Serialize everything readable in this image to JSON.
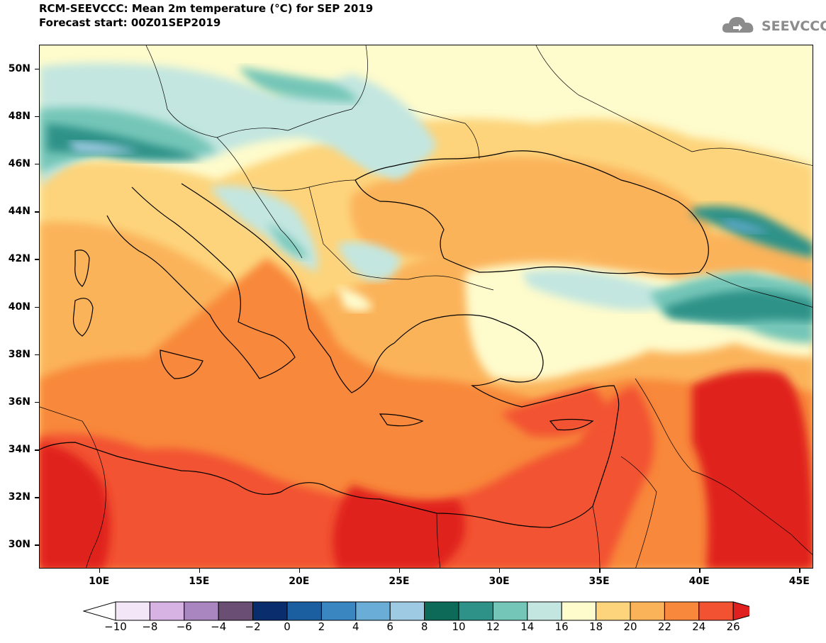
{
  "title": {
    "line1": "RCM-SEEVCCC: Mean 2m temperature (°C) for SEP 2019",
    "line2": "Forecast start: 00Z01SEP2019"
  },
  "logo": {
    "text": "SEEVCCC",
    "icon": "cloud-icon"
  },
  "map": {
    "lon_range": [
      7,
      45.7
    ],
    "lat_range": [
      29,
      51
    ],
    "lat_labels": [
      "50N",
      "48N",
      "46N",
      "44N",
      "42N",
      "40N",
      "38N",
      "36N",
      "34N",
      "32N",
      "30N"
    ],
    "lon_labels": [
      "10E",
      "15E",
      "20E",
      "25E",
      "30E",
      "35E",
      "40E",
      "45E"
    ]
  },
  "colorbar": {
    "labels": [
      "-10",
      "-8",
      "-6",
      "-4",
      "-2",
      "0",
      "2",
      "4",
      "6",
      "8",
      "10",
      "12",
      "14",
      "16",
      "18",
      "20",
      "22",
      "24",
      "26"
    ],
    "colors": [
      "#ffffff",
      "#f2e6f7",
      "#d7b3e4",
      "#a986c0",
      "#6a4e73",
      "#0a2d6e",
      "#1c5fa0",
      "#3a86c0",
      "#6aaed8",
      "#9fcae3",
      "#0d6a58",
      "#2e9288",
      "#74c6b8",
      "#c3e6e0",
      "#fefbcc",
      "#fdd47b",
      "#fbb35a",
      "#f8883b",
      "#f25232",
      "#e0201f"
    ]
  }
}
